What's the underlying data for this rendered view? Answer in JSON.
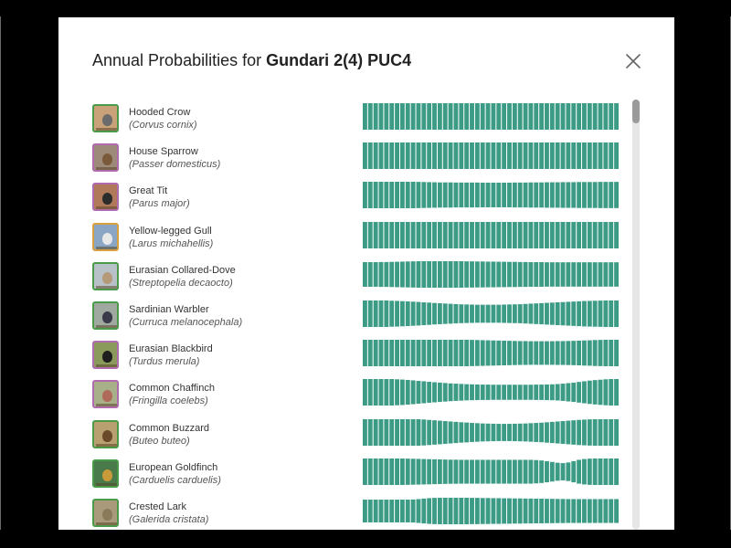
{
  "dialog": {
    "title_prefix": "Annual Probabilities for",
    "location": "Gundari 2(4) PUC4",
    "close_icon": "close-icon"
  },
  "colors": {
    "bar": "#3b9b84",
    "frame": "#000000",
    "dialog_bg": "#ffffff"
  },
  "species": [
    {
      "common": "Hooded Crow",
      "scientific": "(Corvus cornix)",
      "thumb": {
        "bg": "#c9a27a",
        "bird": "#6b6b6b",
        "border": "#4a9a4a"
      },
      "weekly": [
        1,
        1,
        1,
        1,
        1,
        1,
        1,
        1,
        1,
        1,
        1,
        1,
        1,
        1,
        1,
        1,
        1,
        1,
        1,
        1,
        1,
        1,
        1,
        1,
        1,
        1,
        1,
        1,
        1,
        1,
        1,
        1,
        1,
        1,
        1,
        1,
        1,
        1,
        1,
        1,
        1,
        1,
        1,
        1,
        1,
        1,
        1,
        1
      ]
    },
    {
      "common": "House Sparrow",
      "scientific": "(Passer domesticus)",
      "thumb": {
        "bg": "#9e8a78",
        "bird": "#7a5a3a",
        "border": "#b06ab0"
      },
      "weekly": [
        1,
        1,
        1,
        1,
        1,
        1,
        1,
        1,
        1,
        1,
        1,
        1,
        1,
        1,
        1,
        1,
        1,
        1,
        1,
        1,
        1,
        1,
        1,
        1,
        1,
        1,
        1,
        1,
        1,
        1,
        1,
        1,
        1,
        1,
        1,
        1,
        1,
        1,
        1,
        1,
        1,
        1,
        1,
        1,
        1,
        1,
        1,
        1
      ]
    },
    {
      "common": "Great Tit",
      "scientific": "(Parus major)",
      "thumb": {
        "bg": "#b07a5a",
        "bird": "#2c2c2c",
        "border": "#b06ab0"
      },
      "weekly": [
        1,
        1,
        1,
        1,
        1,
        1,
        1,
        1,
        1,
        1,
        0.99,
        0.98,
        0.97,
        0.96,
        0.95,
        0.95,
        0.95,
        0.94,
        0.94,
        0.94,
        0.94,
        0.94,
        0.93,
        0.93,
        0.93,
        0.93,
        0.93,
        0.93,
        0.94,
        0.94,
        0.94,
        0.95,
        0.95,
        0.95,
        0.96,
        0.96,
        0.96,
        0.97,
        0.97,
        0.97,
        0.98,
        0.98,
        0.98,
        0.98,
        0.99,
        0.99,
        0.99,
        0.99
      ]
    },
    {
      "common": "Yellow-legged Gull",
      "scientific": "(Larus michahellis)",
      "thumb": {
        "bg": "#8aa6c4",
        "bird": "#e8e8e8",
        "border": "#d9a040"
      },
      "weekly": [
        1,
        1,
        1,
        1,
        1,
        1,
        1,
        1,
        1,
        1,
        1,
        1,
        1,
        1,
        1,
        1,
        1,
        1,
        1,
        1,
        1,
        1,
        1,
        1,
        1,
        1,
        1,
        1,
        1,
        1,
        1,
        1,
        1,
        1,
        1,
        1,
        1,
        1,
        1,
        1,
        1,
        1,
        1,
        1,
        1,
        1,
        1,
        1
      ]
    },
    {
      "common": "Eurasian Collared-Dove",
      "scientific": "(Streptopelia decaocto)",
      "thumb": {
        "bg": "#b8c0c8",
        "bird": "#b59a7a",
        "border": "#4a9a4a"
      },
      "weekly": [
        0.93,
        0.93,
        0.93,
        0.94,
        0.94,
        0.95,
        0.96,
        0.97,
        0.98,
        0.99,
        1,
        1,
        1,
        1,
        1,
        1,
        1,
        1,
        1,
        0.99,
        0.99,
        0.98,
        0.98,
        0.97,
        0.97,
        0.96,
        0.96,
        0.95,
        0.95,
        0.94,
        0.94,
        0.93,
        0.93,
        0.93,
        0.92,
        0.92,
        0.92,
        0.92,
        0.92,
        0.92,
        0.92,
        0.92,
        0.92,
        0.92,
        0.92,
        0.92,
        0.92,
        0.92
      ]
    },
    {
      "common": "Sardinian Warbler",
      "scientific": "(Curruca melanocephala)",
      "thumb": {
        "bg": "#9fa9a0",
        "bird": "#3a3a4a",
        "border": "#4a9a4a"
      },
      "weekly": [
        1,
        1,
        1,
        1,
        1,
        0.98,
        0.97,
        0.95,
        0.93,
        0.91,
        0.89,
        0.86,
        0.84,
        0.81,
        0.79,
        0.77,
        0.75,
        0.73,
        0.71,
        0.7,
        0.69,
        0.68,
        0.68,
        0.68,
        0.68,
        0.68,
        0.69,
        0.7,
        0.71,
        0.72,
        0.74,
        0.76,
        0.78,
        0.8,
        0.82,
        0.84,
        0.86,
        0.88,
        0.9,
        0.92,
        0.94,
        0.96,
        0.97,
        0.98,
        0.99,
        1,
        1,
        1
      ]
    },
    {
      "common": "Eurasian Blackbird",
      "scientific": "(Turdus merula)",
      "thumb": {
        "bg": "#8a9a5a",
        "bird": "#1e1e1e",
        "border": "#b06ab0"
      },
      "weekly": [
        1,
        1,
        1,
        1,
        1,
        1,
        1,
        1,
        1,
        1,
        1,
        1,
        1,
        1,
        1,
        1,
        1,
        1,
        1,
        1,
        0.99,
        0.98,
        0.97,
        0.96,
        0.95,
        0.94,
        0.93,
        0.92,
        0.91,
        0.9,
        0.9,
        0.89,
        0.89,
        0.89,
        0.89,
        0.89,
        0.9,
        0.9,
        0.91,
        0.92,
        0.93,
        0.95,
        0.96,
        0.98,
        0.99,
        1,
        1,
        1
      ]
    },
    {
      "common": "Common Chaffinch",
      "scientific": "(Fringilla coelebs)",
      "thumb": {
        "bg": "#a8b08a",
        "bird": "#b06a5a",
        "border": "#b06ab0"
      },
      "weekly": [
        1,
        1,
        1,
        1,
        1,
        1,
        0.98,
        0.96,
        0.93,
        0.9,
        0.86,
        0.83,
        0.79,
        0.76,
        0.73,
        0.7,
        0.67,
        0.65,
        0.63,
        0.61,
        0.6,
        0.59,
        0.58,
        0.58,
        0.57,
        0.57,
        0.57,
        0.57,
        0.57,
        0.57,
        0.57,
        0.57,
        0.58,
        0.58,
        0.59,
        0.6,
        0.62,
        0.65,
        0.69,
        0.73,
        0.78,
        0.83,
        0.88,
        0.92,
        0.95,
        0.98,
        1,
        1
      ]
    },
    {
      "common": "Common Buzzard",
      "scientific": "(Buteo buteo)",
      "thumb": {
        "bg": "#b8a070",
        "bird": "#6a4a2a",
        "border": "#4a9a4a"
      },
      "weekly": [
        1,
        1,
        1,
        1,
        1,
        1,
        1,
        1,
        1,
        1,
        1,
        0.98,
        0.95,
        0.92,
        0.89,
        0.86,
        0.83,
        0.8,
        0.77,
        0.75,
        0.72,
        0.7,
        0.68,
        0.67,
        0.66,
        0.65,
        0.65,
        0.65,
        0.66,
        0.67,
        0.68,
        0.7,
        0.72,
        0.74,
        0.77,
        0.8,
        0.83,
        0.86,
        0.89,
        0.92,
        0.95,
        0.97,
        0.99,
        1,
        1,
        1,
        1,
        1
      ]
    },
    {
      "common": "European Goldfinch",
      "scientific": "(Carduelis carduelis)",
      "thumb": {
        "bg": "#4a7a4a",
        "bird": "#c89a3a",
        "border": "#4a9a4a"
      },
      "weekly": [
        1,
        1,
        1,
        1,
        1,
        1,
        1,
        1,
        0.99,
        0.98,
        0.97,
        0.96,
        0.95,
        0.94,
        0.93,
        0.92,
        0.91,
        0.91,
        0.9,
        0.9,
        0.9,
        0.9,
        0.9,
        0.9,
        0.9,
        0.9,
        0.9,
        0.9,
        0.9,
        0.9,
        0.9,
        0.9,
        0.88,
        0.85,
        0.8,
        0.74,
        0.68,
        0.65,
        0.7,
        0.8,
        0.9,
        0.96,
        0.99,
        1,
        1,
        1,
        1,
        1
      ]
    },
    {
      "common": "Crested Lark",
      "scientific": "(Galerida cristata)",
      "thumb": {
        "bg": "#a89a7a",
        "bird": "#8a7a5a",
        "border": "#4a9a4a"
      },
      "weekly": [
        0.86,
        0.86,
        0.86,
        0.86,
        0.86,
        0.86,
        0.86,
        0.86,
        0.86,
        0.87,
        0.9,
        0.94,
        0.97,
        0.99,
        1,
        1,
        1,
        1,
        1,
        1,
        0.99,
        0.99,
        0.98,
        0.98,
        0.97,
        0.97,
        0.96,
        0.96,
        0.95,
        0.95,
        0.94,
        0.94,
        0.93,
        0.93,
        0.92,
        0.92,
        0.91,
        0.91,
        0.9,
        0.9,
        0.9,
        0.9,
        0.9,
        0.9,
        0.9,
        0.9,
        0.9,
        0.9
      ]
    }
  ]
}
